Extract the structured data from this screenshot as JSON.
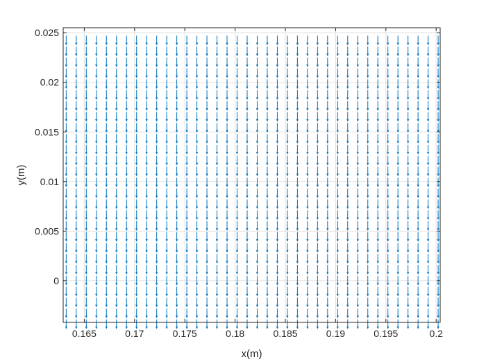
{
  "chart_data": {
    "type": "quiver",
    "title": "",
    "xlabel": "x(m)",
    "ylabel": "y(m)",
    "xlim": [
      0.1629,
      0.2004
    ],
    "ylim": [
      -0.0042,
      0.0255
    ],
    "xticks": [
      0.165,
      0.17,
      0.175,
      0.18,
      0.185,
      0.19,
      0.195,
      0.2
    ],
    "xtick_labels": [
      "0.165",
      "0.17",
      "0.175",
      "0.18",
      "0.185",
      "0.19",
      "0.195",
      "0.2"
    ],
    "yticks": [
      0,
      0.005,
      0.01,
      0.015,
      0.02,
      0.025
    ],
    "ytick_labels": [
      "0",
      "0.005",
      "0.01",
      "0.015",
      "0.02",
      "0.025"
    ],
    "grid": true,
    "box": true,
    "series": [
      {
        "color": "#0072BD",
        "x_start": 0.1632,
        "x_step": 0.001,
        "x_count": 38,
        "y_start": -0.0039,
        "y_step": 0.0011,
        "y_count": 27,
        "u": 0,
        "v": -0.0009
      }
    ]
  }
}
